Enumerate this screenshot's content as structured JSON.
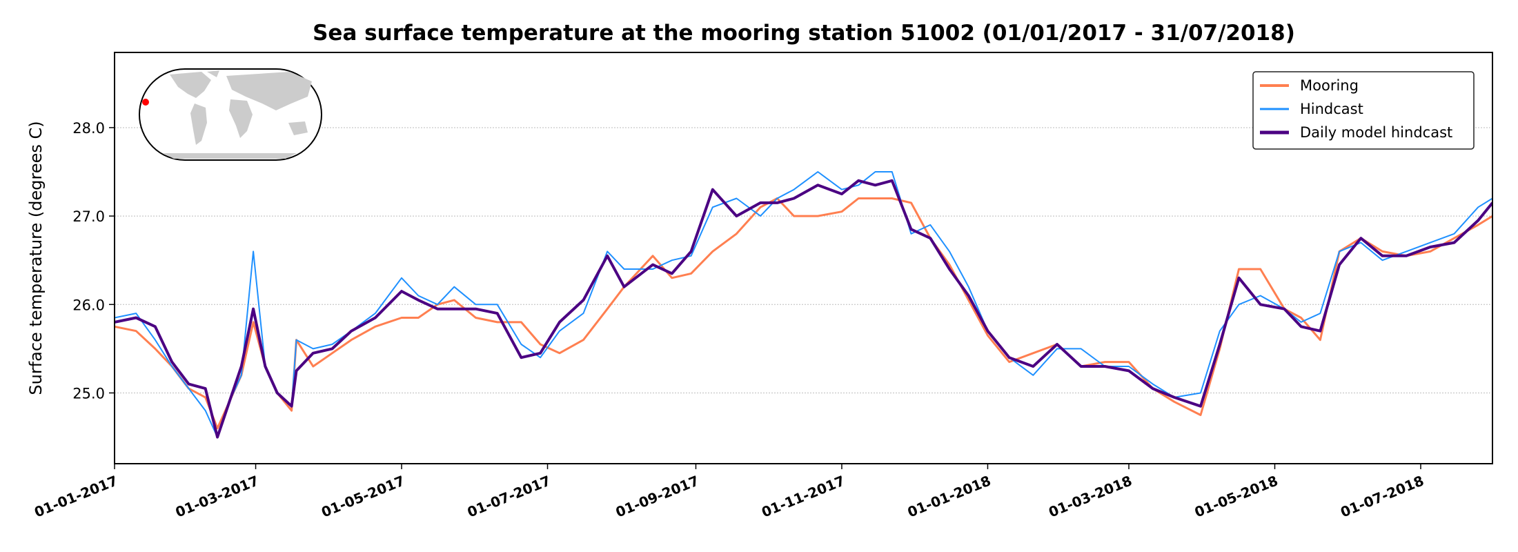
{
  "chart_data": {
    "type": "line",
    "title": "Sea surface temperature at the mooring station 51002 (01/01/2017 - 31/07/2018)",
    "xlabel": "",
    "ylabel": "Surface temperature (degrees C)",
    "xlim": [
      "2017-01-01",
      "2018-07-31"
    ],
    "ylim": [
      24.2,
      28.85
    ],
    "y_ticks": [
      {
        "value": 25.0,
        "label": "25.0"
      },
      {
        "value": 26.0,
        "label": "26.0"
      },
      {
        "value": 27.0,
        "label": "27.0"
      },
      {
        "value": 28.0,
        "label": "28.0"
      }
    ],
    "x_ticks": [
      {
        "date": "2017-01-01",
        "label": "01-01-2017"
      },
      {
        "date": "2017-03-01",
        "label": "01-03-2017"
      },
      {
        "date": "2017-05-01",
        "label": "01-05-2017"
      },
      {
        "date": "2017-07-01",
        "label": "01-07-2017"
      },
      {
        "date": "2017-09-01",
        "label": "01-09-2017"
      },
      {
        "date": "2017-11-01",
        "label": "01-11-2017"
      },
      {
        "date": "2018-01-01",
        "label": "01-01-2018"
      },
      {
        "date": "2018-03-01",
        "label": "01-03-2018"
      },
      {
        "date": "2018-05-01",
        "label": "01-05-2018"
      },
      {
        "date": "2018-07-01",
        "label": "01-07-2018"
      }
    ],
    "grid": "horizontal dotted",
    "legend_position": "top-right",
    "inset": "world map with station location marker",
    "series": [
      {
        "name": "Mooring",
        "color": "#ff7f50",
        "points": [
          [
            "2017-01-01",
            25.75
          ],
          [
            "2017-01-10",
            25.7
          ],
          [
            "2017-01-18",
            25.5
          ],
          [
            "2017-01-25",
            25.3
          ],
          [
            "2017-02-01",
            25.05
          ],
          [
            "2017-02-08",
            24.95
          ],
          [
            "2017-02-13",
            24.6
          ],
          [
            "2017-02-18",
            24.9
          ],
          [
            "2017-02-23",
            25.2
          ],
          [
            "2017-02-28",
            25.8
          ],
          [
            "2017-03-05",
            25.3
          ],
          [
            "2017-03-10",
            25.0
          ],
          [
            "2017-03-16",
            24.8
          ],
          [
            "2017-03-18",
            25.6
          ],
          [
            "2017-03-25",
            25.3
          ],
          [
            "2017-04-02",
            25.45
          ],
          [
            "2017-04-10",
            25.6
          ],
          [
            "2017-04-20",
            25.75
          ],
          [
            "2017-05-01",
            25.85
          ],
          [
            "2017-05-08",
            25.85
          ],
          [
            "2017-05-16",
            26.0
          ],
          [
            "2017-05-23",
            26.05
          ],
          [
            "2017-06-01",
            25.85
          ],
          [
            "2017-06-10",
            25.8
          ],
          [
            "2017-06-20",
            25.8
          ],
          [
            "2017-06-28",
            25.55
          ],
          [
            "2017-07-06",
            25.45
          ],
          [
            "2017-07-16",
            25.6
          ],
          [
            "2017-07-26",
            25.95
          ],
          [
            "2017-08-02",
            26.2
          ],
          [
            "2017-08-14",
            26.55
          ],
          [
            "2017-08-22",
            26.3
          ],
          [
            "2017-08-30",
            26.35
          ],
          [
            "2017-09-08",
            26.6
          ],
          [
            "2017-09-18",
            26.8
          ],
          [
            "2017-09-28",
            27.1
          ],
          [
            "2017-10-05",
            27.2
          ],
          [
            "2017-10-12",
            27.0
          ],
          [
            "2017-10-22",
            27.0
          ],
          [
            "2017-11-01",
            27.05
          ],
          [
            "2017-11-08",
            27.2
          ],
          [
            "2017-11-15",
            27.2
          ],
          [
            "2017-11-22",
            27.2
          ],
          [
            "2017-11-30",
            27.15
          ],
          [
            "2017-12-08",
            26.75
          ],
          [
            "2017-12-16",
            26.45
          ],
          [
            "2017-12-24",
            26.05
          ],
          [
            "2018-01-01",
            25.65
          ],
          [
            "2018-01-10",
            25.35
          ],
          [
            "2018-01-20",
            25.45
          ],
          [
            "2018-01-30",
            25.55
          ],
          [
            "2018-02-09",
            25.3
          ],
          [
            "2018-02-19",
            25.35
          ],
          [
            "2018-03-01",
            25.35
          ],
          [
            "2018-03-11",
            25.05
          ],
          [
            "2018-03-20",
            24.9
          ],
          [
            "2018-03-31",
            24.75
          ],
          [
            "2018-04-08",
            25.5
          ],
          [
            "2018-04-16",
            26.4
          ],
          [
            "2018-04-25",
            26.4
          ],
          [
            "2018-05-05",
            25.95
          ],
          [
            "2018-05-12",
            25.85
          ],
          [
            "2018-05-20",
            25.6
          ],
          [
            "2018-05-28",
            26.6
          ],
          [
            "2018-06-06",
            26.75
          ],
          [
            "2018-06-15",
            26.6
          ],
          [
            "2018-06-25",
            26.55
          ],
          [
            "2018-07-05",
            26.6
          ],
          [
            "2018-07-15",
            26.75
          ],
          [
            "2018-07-25",
            26.9
          ],
          [
            "2018-07-31",
            27.0
          ]
        ]
      },
      {
        "name": "Hindcast",
        "color": "#1e90ff",
        "points": [
          [
            "2017-01-01",
            25.85
          ],
          [
            "2017-01-10",
            25.9
          ],
          [
            "2017-01-18",
            25.6
          ],
          [
            "2017-01-25",
            25.3
          ],
          [
            "2017-02-01",
            25.05
          ],
          [
            "2017-02-08",
            24.8
          ],
          [
            "2017-02-13",
            24.5
          ],
          [
            "2017-02-18",
            24.9
          ],
          [
            "2017-02-23",
            25.2
          ],
          [
            "2017-02-28",
            26.6
          ],
          [
            "2017-03-05",
            25.3
          ],
          [
            "2017-03-10",
            25.0
          ],
          [
            "2017-03-16",
            24.85
          ],
          [
            "2017-03-18",
            25.6
          ],
          [
            "2017-03-25",
            25.5
          ],
          [
            "2017-04-02",
            25.55
          ],
          [
            "2017-04-10",
            25.7
          ],
          [
            "2017-04-20",
            25.9
          ],
          [
            "2017-05-01",
            26.3
          ],
          [
            "2017-05-08",
            26.1
          ],
          [
            "2017-05-16",
            26.0
          ],
          [
            "2017-05-23",
            26.2
          ],
          [
            "2017-06-01",
            26.0
          ],
          [
            "2017-06-10",
            26.0
          ],
          [
            "2017-06-20",
            25.55
          ],
          [
            "2017-06-28",
            25.4
          ],
          [
            "2017-07-06",
            25.7
          ],
          [
            "2017-07-16",
            25.9
          ],
          [
            "2017-07-26",
            26.6
          ],
          [
            "2017-08-02",
            26.4
          ],
          [
            "2017-08-14",
            26.4
          ],
          [
            "2017-08-22",
            26.5
          ],
          [
            "2017-08-30",
            26.55
          ],
          [
            "2017-09-08",
            27.1
          ],
          [
            "2017-09-18",
            27.2
          ],
          [
            "2017-09-28",
            27.0
          ],
          [
            "2017-10-05",
            27.2
          ],
          [
            "2017-10-12",
            27.3
          ],
          [
            "2017-10-22",
            27.5
          ],
          [
            "2017-11-01",
            27.3
          ],
          [
            "2017-11-08",
            27.35
          ],
          [
            "2017-11-15",
            27.5
          ],
          [
            "2017-11-22",
            27.5
          ],
          [
            "2017-11-30",
            26.8
          ],
          [
            "2017-12-08",
            26.9
          ],
          [
            "2017-12-16",
            26.6
          ],
          [
            "2017-12-24",
            26.2
          ],
          [
            "2018-01-01",
            25.7
          ],
          [
            "2018-01-10",
            25.4
          ],
          [
            "2018-01-20",
            25.2
          ],
          [
            "2018-01-30",
            25.5
          ],
          [
            "2018-02-09",
            25.5
          ],
          [
            "2018-02-19",
            25.3
          ],
          [
            "2018-03-01",
            25.3
          ],
          [
            "2018-03-11",
            25.1
          ],
          [
            "2018-03-20",
            24.95
          ],
          [
            "2018-03-31",
            25.0
          ],
          [
            "2018-04-08",
            25.7
          ],
          [
            "2018-04-16",
            26.0
          ],
          [
            "2018-04-25",
            26.1
          ],
          [
            "2018-05-05",
            25.95
          ],
          [
            "2018-05-12",
            25.8
          ],
          [
            "2018-05-20",
            25.9
          ],
          [
            "2018-05-28",
            26.6
          ],
          [
            "2018-06-06",
            26.7
          ],
          [
            "2018-06-15",
            26.5
          ],
          [
            "2018-06-25",
            26.6
          ],
          [
            "2018-07-05",
            26.7
          ],
          [
            "2018-07-15",
            26.8
          ],
          [
            "2018-07-25",
            27.1
          ],
          [
            "2018-07-31",
            27.2
          ]
        ]
      },
      {
        "name": "Daily model hindcast",
        "color": "#4b0082",
        "points": [
          [
            "2017-01-01",
            25.8
          ],
          [
            "2017-01-10",
            25.85
          ],
          [
            "2017-01-18",
            25.75
          ],
          [
            "2017-01-25",
            25.35
          ],
          [
            "2017-02-01",
            25.1
          ],
          [
            "2017-02-08",
            25.05
          ],
          [
            "2017-02-13",
            24.5
          ],
          [
            "2017-02-18",
            24.9
          ],
          [
            "2017-02-23",
            25.3
          ],
          [
            "2017-02-28",
            25.95
          ],
          [
            "2017-03-05",
            25.3
          ],
          [
            "2017-03-10",
            25.0
          ],
          [
            "2017-03-16",
            24.85
          ],
          [
            "2017-03-18",
            25.25
          ],
          [
            "2017-03-25",
            25.45
          ],
          [
            "2017-04-02",
            25.5
          ],
          [
            "2017-04-10",
            25.7
          ],
          [
            "2017-04-20",
            25.85
          ],
          [
            "2017-05-01",
            26.15
          ],
          [
            "2017-05-08",
            26.05
          ],
          [
            "2017-05-16",
            25.95
          ],
          [
            "2017-05-23",
            25.95
          ],
          [
            "2017-06-01",
            25.95
          ],
          [
            "2017-06-10",
            25.9
          ],
          [
            "2017-06-20",
            25.4
          ],
          [
            "2017-06-28",
            25.45
          ],
          [
            "2017-07-06",
            25.8
          ],
          [
            "2017-07-16",
            26.05
          ],
          [
            "2017-07-26",
            26.55
          ],
          [
            "2017-08-02",
            26.2
          ],
          [
            "2017-08-14",
            26.45
          ],
          [
            "2017-08-22",
            26.35
          ],
          [
            "2017-08-30",
            26.6
          ],
          [
            "2017-09-08",
            27.3
          ],
          [
            "2017-09-18",
            27.0
          ],
          [
            "2017-09-28",
            27.15
          ],
          [
            "2017-10-05",
            27.15
          ],
          [
            "2017-10-12",
            27.2
          ],
          [
            "2017-10-22",
            27.35
          ],
          [
            "2017-11-01",
            27.25
          ],
          [
            "2017-11-08",
            27.4
          ],
          [
            "2017-11-15",
            27.35
          ],
          [
            "2017-11-22",
            27.4
          ],
          [
            "2017-11-30",
            26.85
          ],
          [
            "2017-12-08",
            26.75
          ],
          [
            "2017-12-16",
            26.4
          ],
          [
            "2017-12-24",
            26.1
          ],
          [
            "2018-01-01",
            25.7
          ],
          [
            "2018-01-10",
            25.4
          ],
          [
            "2018-01-20",
            25.3
          ],
          [
            "2018-01-30",
            25.55
          ],
          [
            "2018-02-09",
            25.3
          ],
          [
            "2018-02-19",
            25.3
          ],
          [
            "2018-03-01",
            25.25
          ],
          [
            "2018-03-11",
            25.05
          ],
          [
            "2018-03-20",
            24.95
          ],
          [
            "2018-03-31",
            24.85
          ],
          [
            "2018-04-08",
            25.55
          ],
          [
            "2018-04-16",
            26.3
          ],
          [
            "2018-04-25",
            26.0
          ],
          [
            "2018-05-05",
            25.95
          ],
          [
            "2018-05-12",
            25.75
          ],
          [
            "2018-05-20",
            25.7
          ],
          [
            "2018-05-28",
            26.45
          ],
          [
            "2018-06-06",
            26.75
          ],
          [
            "2018-06-15",
            26.55
          ],
          [
            "2018-06-25",
            26.55
          ],
          [
            "2018-07-05",
            26.65
          ],
          [
            "2018-07-15",
            26.7
          ],
          [
            "2018-07-25",
            26.95
          ],
          [
            "2018-07-31",
            27.15
          ]
        ]
      }
    ]
  }
}
